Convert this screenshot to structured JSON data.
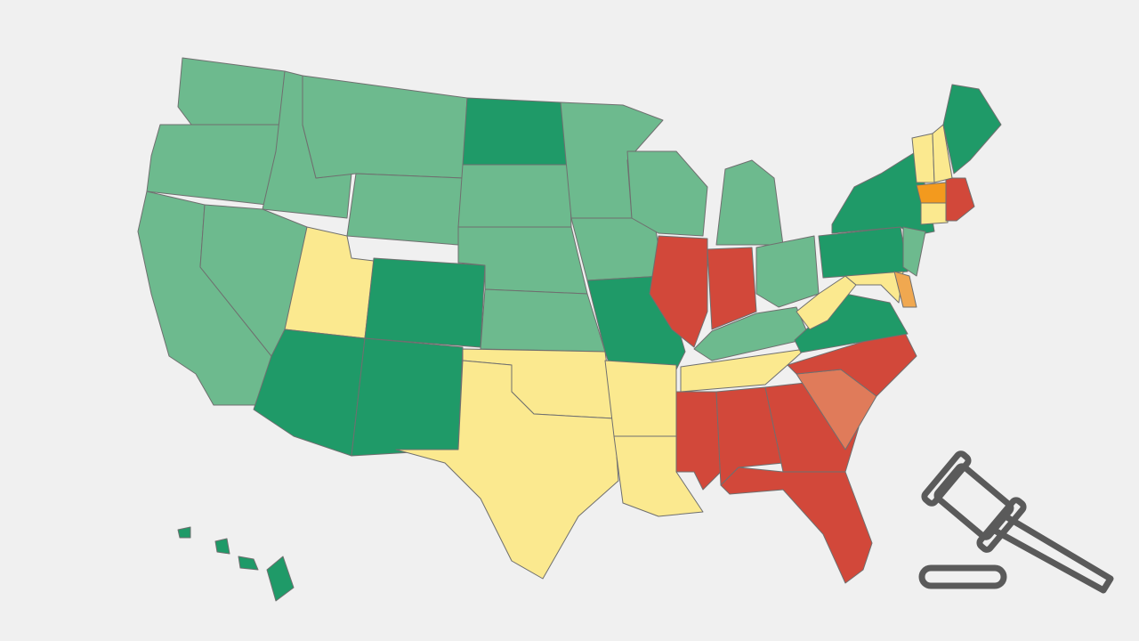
{
  "map": {
    "background": "#f0f0f0",
    "border_color": "#6f6f6f",
    "regions": [
      {
        "color": "#6dba8e"
      },
      {
        "color": "#6dba8e"
      },
      {
        "color": "#6dba8e"
      },
      {
        "color": "#6dba8e"
      },
      {
        "color": "#6dba8e"
      },
      {
        "color": "#6dba8e"
      },
      {
        "color": "#6dba8e"
      },
      {
        "color": "#fbe98f"
      },
      {
        "color": "#1f9a68"
      },
      {
        "color": "#1f9a68"
      },
      {
        "color": "#1f9a68"
      },
      {
        "color": "#1f9a68"
      },
      {
        "color": "#6dba8e"
      },
      {
        "color": "#6dba8e"
      },
      {
        "color": "#6dba8e"
      },
      {
        "color": "#fbe98f"
      },
      {
        "color": "#fbe98f"
      },
      {
        "color": "#6dba8e"
      },
      {
        "color": "#6dba8e"
      },
      {
        "color": "#1f9a68"
      },
      {
        "color": "#fbe98f"
      },
      {
        "color": "#fbe98f"
      },
      {
        "color": "#6dba8e"
      },
      {
        "color": "#d2483a"
      },
      {
        "color": "#d2483a"
      },
      {
        "color": "#6dba8e"
      },
      {
        "color": "#6dba8e"
      },
      {
        "color": "#6dba8e"
      },
      {
        "color": "#fbe98f"
      },
      {
        "color": "#d2483a"
      },
      {
        "color": "#d2483a"
      },
      {
        "color": "#d2483a"
      },
      {
        "color": "#d2483a"
      },
      {
        "color": "#e07b5a"
      },
      {
        "color": "#d2483a"
      },
      {
        "color": "#1f9a68"
      },
      {
        "color": "#fbe98f"
      },
      {
        "color": "#1f9a68"
      },
      {
        "color": "#1f9a68"
      },
      {
        "color": "#fbe98f"
      },
      {
        "color": "#f0a850"
      },
      {
        "color": "#6dba8e"
      },
      {
        "color": "#fbe98f"
      },
      {
        "color": "#d2483a"
      },
      {
        "color": "#f39a1e"
      },
      {
        "color": "#fbe98f"
      },
      {
        "color": "#fbe98f"
      },
      {
        "color": "#1f9a68"
      },
      {
        "color": "#1f9a68"
      },
      {
        "color": "#1f9a68"
      },
      {
        "color": "#1f9a68"
      },
      {
        "color": "#1f9a68"
      }
    ]
  }
}
